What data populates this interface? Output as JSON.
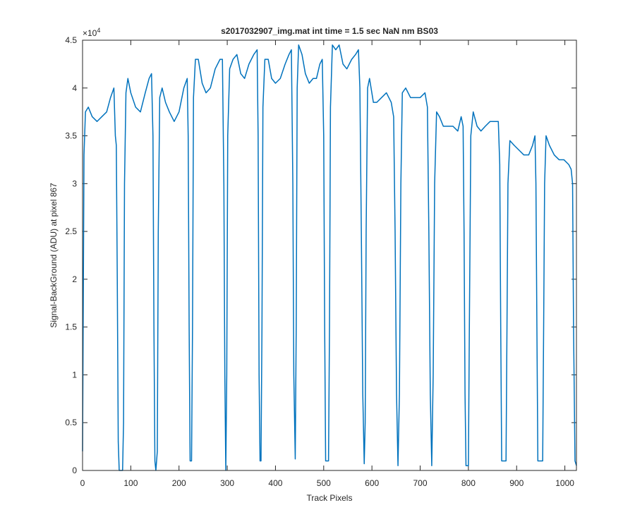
{
  "chart_data": {
    "type": "line",
    "title": "s2017032907_img.mat int time = 1.5 sec  NaN nm BS03",
    "xlabel": "Track Pixels",
    "ylabel": "Signal-BackGround (ADU) at pixel 867",
    "y_exponent": {
      "base": "×10",
      "power": "4"
    },
    "color": "#0072bd",
    "xlim": [
      0,
      1024
    ],
    "xticks": [
      0,
      100,
      200,
      300,
      400,
      500,
      600,
      700,
      800,
      900,
      1000
    ],
    "ylim": [
      0,
      4.5
    ],
    "yticks": [
      0,
      0.5,
      1,
      1.5,
      2,
      2.5,
      3,
      3.5,
      4,
      4.5
    ],
    "grid": false,
    "x": [
      0,
      3,
      6,
      12,
      20,
      30,
      40,
      50,
      58,
      65,
      68,
      70,
      72,
      74,
      76,
      83,
      85,
      87,
      90,
      94,
      100,
      110,
      120,
      130,
      138,
      143,
      146,
      148,
      150,
      152,
      155,
      157,
      160,
      165,
      172,
      180,
      190,
      200,
      210,
      217,
      219,
      221,
      223,
      226,
      228,
      230,
      234,
      240,
      248,
      256,
      265,
      275,
      285,
      290,
      293,
      295,
      297,
      299,
      301,
      305,
      312,
      320,
      328,
      336,
      345,
      355,
      362,
      364,
      366,
      368,
      370,
      372,
      374,
      378,
      385,
      392,
      400,
      410,
      420,
      428,
      433,
      436,
      438,
      441,
      443,
      445,
      448,
      455,
      462,
      470,
      478,
      485,
      492,
      497,
      500,
      502,
      504,
      510,
      512,
      514,
      518,
      525,
      532,
      540,
      548,
      558,
      566,
      572,
      575,
      578,
      581,
      584,
      586,
      588,
      591,
      595,
      603,
      610,
      620,
      630,
      640,
      645,
      648,
      651,
      654,
      657,
      660,
      663,
      670,
      680,
      690,
      700,
      710,
      715,
      718,
      721,
      724,
      727,
      730,
      734,
      740,
      748,
      758,
      768,
      778,
      785,
      789,
      791,
      793,
      795,
      800,
      802,
      805,
      810,
      818,
      826,
      835,
      845,
      855,
      862,
      865,
      867,
      869,
      878,
      880,
      882,
      886,
      895,
      905,
      915,
      925,
      933,
      938,
      940,
      942,
      944,
      954,
      956,
      958,
      961,
      968,
      978,
      988,
      998,
      1008,
      1013,
      1016,
      1018,
      1021,
      1024
    ],
    "values": [
      0.2,
      3.3,
      3.75,
      3.8,
      3.7,
      3.65,
      3.7,
      3.75,
      3.9,
      4.0,
      3.5,
      3.4,
      2.0,
      0.3,
      0,
      0,
      0.5,
      3.0,
      3.95,
      4.1,
      3.95,
      3.8,
      3.75,
      3.95,
      4.1,
      4.15,
      3.5,
      1.5,
      0.1,
      0,
      0.2,
      2.5,
      3.9,
      4.0,
      3.85,
      3.75,
      3.65,
      3.75,
      4.0,
      4.1,
      3.5,
      1.5,
      0.1,
      0.1,
      1.5,
      3.9,
      4.3,
      4.3,
      4.05,
      3.95,
      4.0,
      4.2,
      4.3,
      4.3,
      3.0,
      1.0,
      0,
      1.0,
      3.5,
      4.2,
      4.3,
      4.35,
      4.15,
      4.1,
      4.25,
      4.35,
      4.4,
      3.5,
      1.0,
      0.1,
      0.1,
      1.5,
      3.8,
      4.3,
      4.3,
      4.1,
      4.05,
      4.1,
      4.25,
      4.35,
      4.4,
      3.0,
      1.0,
      0.12,
      1.5,
      4.0,
      4.45,
      4.35,
      4.15,
      4.05,
      4.1,
      4.1,
      4.25,
      4.3,
      3.5,
      1.5,
      0.1,
      0.1,
      1.5,
      3.8,
      4.45,
      4.4,
      4.45,
      4.25,
      4.2,
      4.3,
      4.35,
      4.4,
      4.0,
      2.5,
      0.8,
      0.07,
      0.5,
      2.5,
      4.0,
      4.1,
      3.85,
      3.85,
      3.9,
      3.95,
      3.85,
      3.7,
      2.5,
      0.8,
      0.05,
      0.8,
      3.0,
      3.95,
      4.0,
      3.9,
      3.9,
      3.9,
      3.95,
      3.8,
      2.5,
      0.8,
      0.05,
      1.0,
      3.0,
      3.75,
      3.7,
      3.6,
      3.6,
      3.6,
      3.55,
      3.7,
      3.6,
      2.5,
      0.8,
      0.05,
      0.05,
      1.5,
      3.5,
      3.75,
      3.6,
      3.55,
      3.6,
      3.65,
      3.65,
      3.65,
      3.2,
      1.5,
      0.1,
      0.1,
      1.5,
      3.0,
      3.45,
      3.4,
      3.35,
      3.3,
      3.3,
      3.4,
      3.5,
      3.0,
      1.5,
      0.1,
      0.1,
      1.5,
      3.0,
      3.5,
      3.4,
      3.3,
      3.25,
      3.25,
      3.2,
      3.15,
      3.0,
      1.5,
      0.1,
      0.05
    ]
  }
}
